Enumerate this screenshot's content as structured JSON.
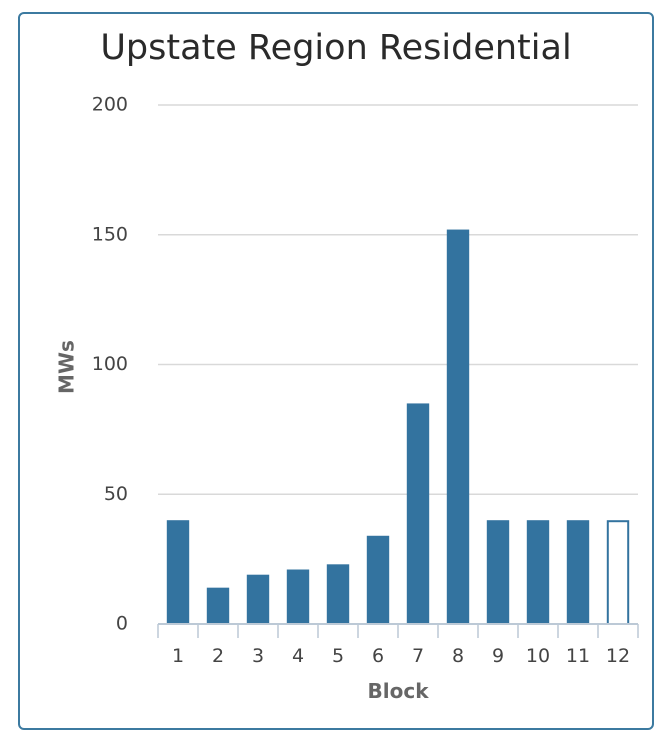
{
  "chart_data": {
    "type": "bar",
    "title": "Upstate Region Residential",
    "xlabel": "Block",
    "ylabel": "MWs",
    "categories": [
      "1",
      "2",
      "3",
      "4",
      "5",
      "6",
      "7",
      "8",
      "9",
      "10",
      "11",
      "12"
    ],
    "values": [
      40,
      14,
      19,
      21,
      23,
      34,
      85,
      152,
      40,
      40,
      40,
      40
    ],
    "outlined": [
      false,
      false,
      false,
      false,
      false,
      false,
      false,
      false,
      false,
      false,
      false,
      true
    ],
    "yticks": [
      0,
      50,
      100,
      150,
      200
    ],
    "ylim": [
      0,
      200
    ],
    "grid": true,
    "colors": {
      "bar": "#33739f",
      "grid": "#d9d9d9",
      "axis": "#bcc9d6",
      "border": "#3c7aa0"
    }
  }
}
